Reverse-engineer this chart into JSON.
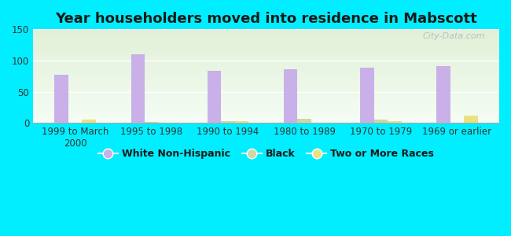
{
  "title": "Year householders moved into residence in Mabscott",
  "categories": [
    "1999 to March\n2000",
    "1995 to 1998",
    "1990 to 1994",
    "1980 to 1989",
    "1970 to 1979",
    "1969 or earlier"
  ],
  "white_non_hispanic": [
    77,
    110,
    84,
    86,
    89,
    91
  ],
  "black": [
    0,
    2,
    3,
    7,
    5,
    0
  ],
  "two_or_more_races": [
    5,
    0,
    3,
    0,
    3,
    12
  ],
  "bar_width": 0.18,
  "colors": {
    "white_non_hispanic": "#c9b0e8",
    "black": "#ccd9a0",
    "two_or_more_races": "#ede080"
  },
  "ylim": [
    0,
    150
  ],
  "yticks": [
    0,
    50,
    100,
    150
  ],
  "background_color": "#00eeff",
  "grid_color": "#ffffff",
  "watermark": "City-Data.com",
  "title_fontsize": 13,
  "tick_fontsize": 8.5,
  "legend_fontsize": 9
}
